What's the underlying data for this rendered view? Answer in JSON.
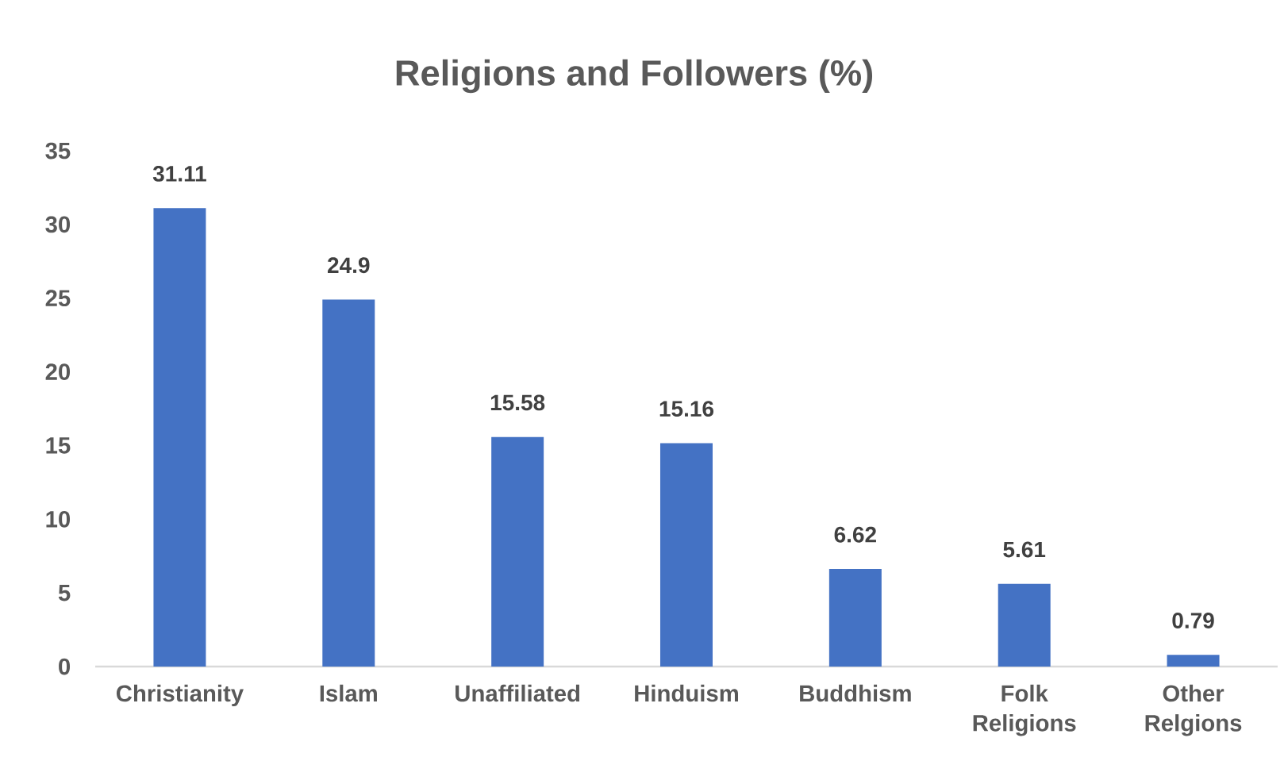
{
  "chart_data": {
    "type": "bar",
    "title": "Religions and Followers (%)",
    "categories": [
      "Christianity",
      "Islam",
      "Unaffiliated",
      "Hinduism",
      "Buddhism",
      "Folk Religions",
      "Other Relgions"
    ],
    "values": [
      31.11,
      24.9,
      15.58,
      15.16,
      6.62,
      5.61,
      0.79
    ],
    "color": "#4472c4",
    "ylim": [
      0,
      35
    ],
    "yticks": [
      0,
      5,
      10,
      15,
      20,
      25,
      30,
      35
    ],
    "data_labels": true
  }
}
